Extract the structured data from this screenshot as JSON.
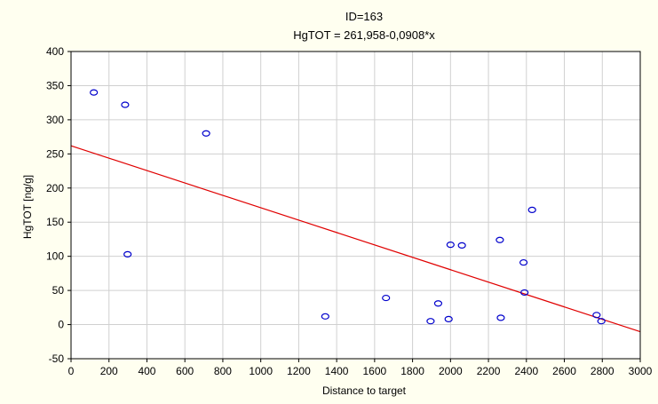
{
  "chart_data": {
    "type": "scatter",
    "title": "ID=163",
    "subtitle": "HgTOT = 261,958-0,0908*x",
    "xlabel": "Distance to target",
    "ylabel": "HgTOT [ng/g]",
    "xlim": [
      0,
      3000
    ],
    "ylim": [
      -50,
      400
    ],
    "xticks": [
      0,
      200,
      400,
      600,
      800,
      1000,
      1200,
      1400,
      1600,
      1800,
      2000,
      2200,
      2400,
      2600,
      2800,
      3000
    ],
    "yticks": [
      -50,
      0,
      50,
      100,
      150,
      200,
      250,
      300,
      350,
      400
    ],
    "grid": true,
    "points": [
      {
        "x": 120,
        "y": 340
      },
      {
        "x": 285,
        "y": 322
      },
      {
        "x": 298,
        "y": 103
      },
      {
        "x": 712,
        "y": 280
      },
      {
        "x": 1340,
        "y": 12
      },
      {
        "x": 1660,
        "y": 39
      },
      {
        "x": 1895,
        "y": 5
      },
      {
        "x": 1935,
        "y": 31
      },
      {
        "x": 1990,
        "y": 8
      },
      {
        "x": 2000,
        "y": 117
      },
      {
        "x": 2060,
        "y": 116
      },
      {
        "x": 2260,
        "y": 124
      },
      {
        "x": 2265,
        "y": 10
      },
      {
        "x": 2385,
        "y": 91
      },
      {
        "x": 2390,
        "y": 47
      },
      {
        "x": 2430,
        "y": 168
      },
      {
        "x": 2770,
        "y": 14
      },
      {
        "x": 2795,
        "y": 5
      }
    ],
    "regression": {
      "intercept": 261.958,
      "slope": -0.0908
    },
    "colors": {
      "points": "#0000CC",
      "line": "#E00000",
      "background": "#FFFFF0",
      "plot_background": "#FFFFFF"
    }
  }
}
